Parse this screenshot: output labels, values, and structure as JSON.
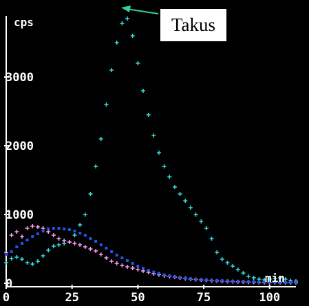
{
  "chart_data": {
    "type": "scatter",
    "ylabel": "cps",
    "xlabel": "min",
    "xlim": [
      0,
      110
    ],
    "ylim": [
      0,
      4000
    ],
    "xticks": [
      "0",
      "25",
      "50",
      "75",
      "100"
    ],
    "yticks": [
      "0",
      "1000",
      "2000",
      "3000"
    ],
    "annotation": "Takus",
    "grid": false,
    "series": [
      {
        "color": "#33e0e0",
        "marker": "plus",
        "x": [
          0,
          2,
          4,
          6,
          8,
          10,
          12,
          14,
          16,
          18,
          20,
          22,
          24,
          26,
          28,
          30,
          32,
          34,
          36,
          38,
          40,
          42,
          44,
          46,
          48,
          50,
          52,
          54,
          56,
          58,
          60,
          62,
          64,
          66,
          68,
          70,
          72,
          74,
          76,
          78,
          80,
          82,
          84,
          86,
          88,
          90,
          92,
          94,
          96,
          98,
          100,
          102,
          104,
          106,
          108,
          110
        ],
        "y": [
          300,
          360,
          380,
          350,
          300,
          280,
          320,
          400,
          480,
          540,
          560,
          580,
          600,
          700,
          850,
          1000,
          1300,
          1700,
          2100,
          2600,
          3100,
          3500,
          3780,
          3850,
          3600,
          3200,
          2800,
          2450,
          2150,
          1900,
          1700,
          1550,
          1400,
          1300,
          1200,
          1100,
          1000,
          900,
          800,
          650,
          450,
          350,
          300,
          250,
          200,
          150,
          100,
          80,
          60,
          50,
          60,
          70,
          80,
          60,
          40,
          30
        ]
      },
      {
        "color": "#ff9ff0",
        "marker": "plus",
        "x": [
          0,
          2,
          4,
          6,
          8,
          10,
          12,
          14,
          16,
          18,
          20,
          22,
          24,
          26,
          28,
          30,
          32,
          34,
          36,
          38,
          40,
          42,
          44,
          46,
          48,
          50,
          52,
          54,
          56,
          58,
          60,
          62,
          64,
          66,
          68,
          70,
          72,
          74,
          76,
          78,
          80,
          82,
          84,
          86,
          88,
          90,
          92,
          94,
          96,
          98,
          100,
          102,
          104,
          106,
          108,
          110
        ],
        "y": [
          450,
          700,
          750,
          680,
          800,
          830,
          820,
          800,
          750,
          700,
          650,
          620,
          600,
          580,
          560,
          530,
          500,
          470,
          420,
          370,
          320,
          290,
          260,
          240,
          220,
          200,
          180,
          160,
          140,
          125,
          110,
          100,
          90,
          80,
          70,
          60,
          55,
          50,
          45,
          40,
          35,
          30,
          28,
          25,
          22,
          20,
          18,
          16,
          15,
          14,
          13,
          12,
          11,
          10,
          10,
          10
        ]
      },
      {
        "color": "#2255ee",
        "marker": "dot",
        "x": [
          0,
          2,
          4,
          6,
          8,
          10,
          12,
          14,
          16,
          18,
          20,
          22,
          24,
          26,
          28,
          30,
          32,
          34,
          36,
          38,
          40,
          42,
          44,
          46,
          48,
          50,
          52,
          54,
          56,
          58,
          60,
          62,
          64,
          66,
          68,
          70,
          72,
          74,
          76,
          78,
          80,
          82,
          84,
          86,
          88,
          90,
          92,
          94,
          96,
          98,
          100,
          102,
          104,
          106,
          108,
          110
        ],
        "y": [
          420,
          460,
          530,
          580,
          630,
          680,
          720,
          760,
          790,
          800,
          800,
          790,
          780,
          760,
          730,
          700,
          650,
          610,
          560,
          510,
          460,
          410,
          370,
          330,
          290,
          250,
          220,
          190,
          165,
          145,
          125,
          110,
          95,
          85,
          75,
          65,
          58,
          52,
          47,
          42,
          38,
          35,
          32,
          30,
          28,
          26,
          24,
          22,
          20,
          18,
          16,
          15,
          14,
          13,
          12,
          11
        ]
      }
    ]
  },
  "callout": {
    "text": "Takus"
  }
}
